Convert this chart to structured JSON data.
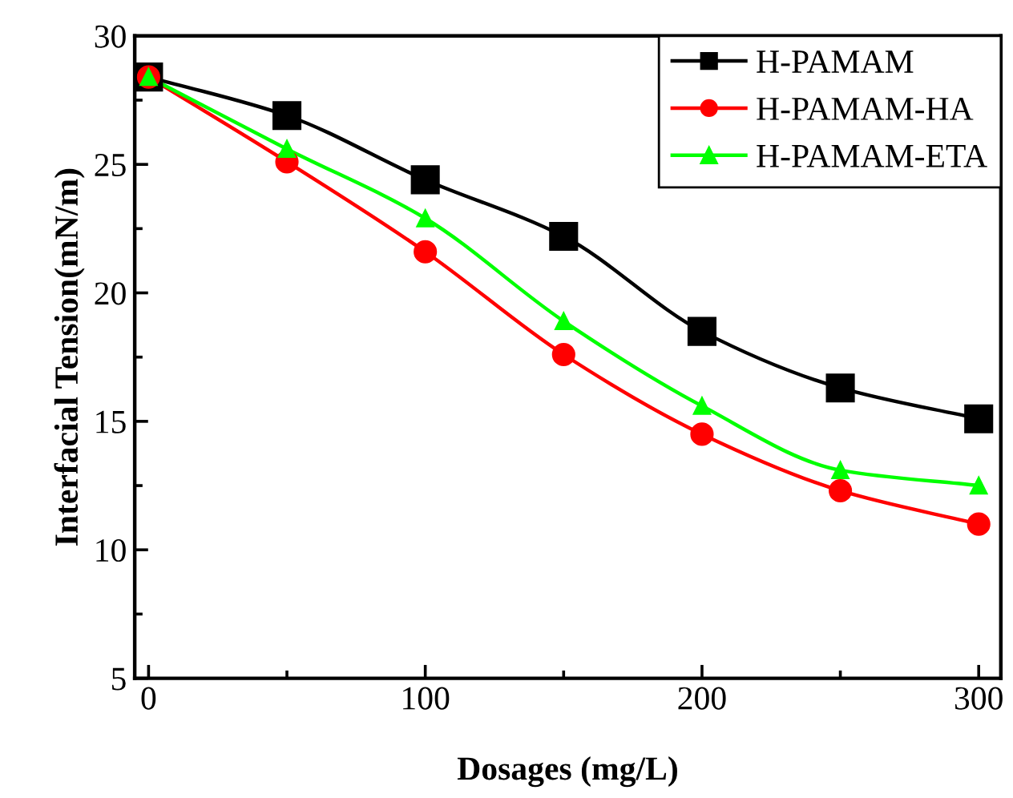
{
  "chart_data": {
    "type": "line",
    "xlabel": "Dosages (mg/L)",
    "ylabel": "Interfacial Tension(mN/m)",
    "x": [
      0,
      50,
      100,
      150,
      200,
      250,
      300
    ],
    "series": [
      {
        "name": "H-PAMAM",
        "color": "#000000",
        "marker": "square",
        "values": [
          28.4,
          26.9,
          24.4,
          22.2,
          18.5,
          16.3,
          15.1
        ]
      },
      {
        "name": "H-PAMAM-HA",
        "color": "#ff0000",
        "marker": "circle",
        "values": [
          28.4,
          25.1,
          21.6,
          17.6,
          14.5,
          12.3,
          11.0
        ]
      },
      {
        "name": "H-PAMAM-ETA",
        "color": "#00ff00",
        "marker": "triangle",
        "values": [
          28.4,
          25.6,
          22.9,
          18.9,
          15.6,
          13.1,
          12.5
        ]
      }
    ],
    "xlim": [
      -5,
      308
    ],
    "xticks": [
      0,
      100,
      200,
      300
    ],
    "ylim": [
      5,
      30
    ],
    "yticks": [
      5,
      10,
      15,
      20,
      25,
      30
    ],
    "grid": false,
    "legend": "top right",
    "line_style": "solid"
  }
}
